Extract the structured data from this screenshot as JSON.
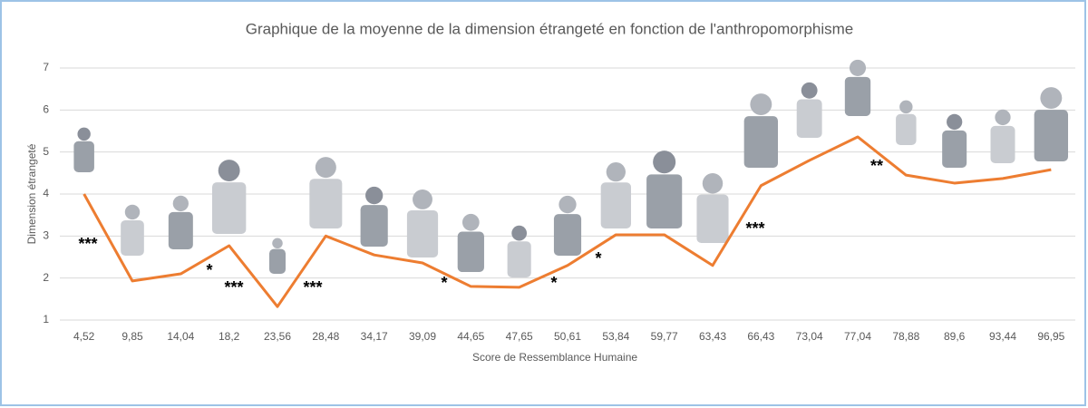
{
  "chart_data": {
    "type": "line",
    "title": "Graphique de la moyenne de la dimension étrangeté en fonction de l'anthropomorphisme",
    "x_label": "Score de Ressemblance Humaine",
    "y_label": "Dimension étrangeté",
    "categories": [
      "4,52",
      "9,85",
      "14,04",
      "18,2",
      "23,56",
      "28,48",
      "34,17",
      "39,09",
      "44,65",
      "47,65",
      "50,61",
      "53,84",
      "59,77",
      "63,43",
      "66,43",
      "73,04",
      "77,04",
      "78,88",
      "89,6",
      "93,44",
      "96,95"
    ],
    "values": [
      4.0,
      1.93,
      2.1,
      2.77,
      1.32,
      3.0,
      2.55,
      2.36,
      1.8,
      1.78,
      2.3,
      3.03,
      3.03,
      2.3,
      4.2,
      4.8,
      5.36,
      4.45,
      4.26,
      4.37,
      4.58
    ],
    "color": "#ed7d31",
    "ylim": [
      1,
      7
    ],
    "yticks": [
      1,
      2,
      3,
      4,
      5,
      6,
      7
    ],
    "grid": true,
    "annotations": [
      "***",
      "*",
      "***",
      "***",
      "*",
      "*",
      "*",
      "***",
      "**"
    ]
  }
}
